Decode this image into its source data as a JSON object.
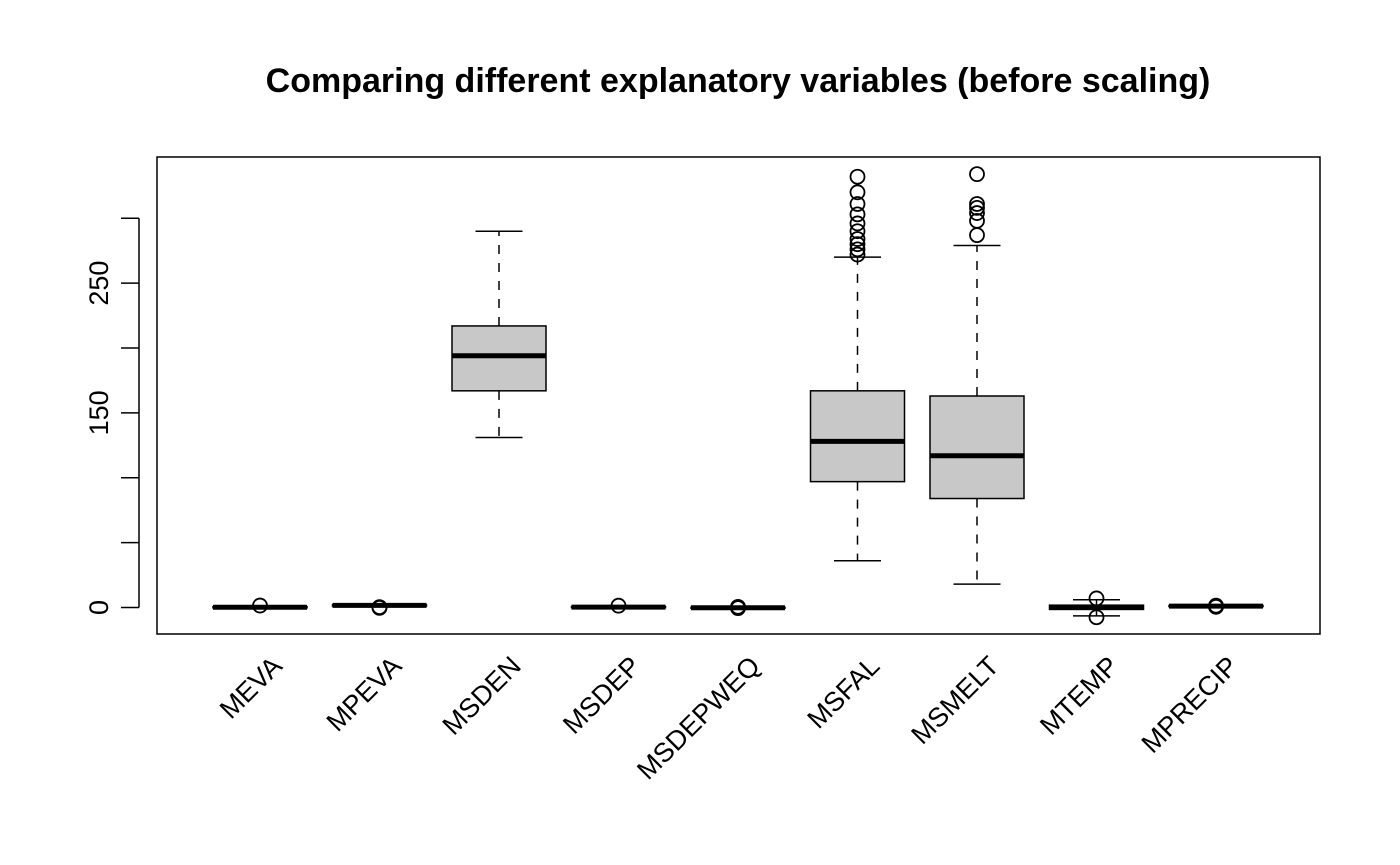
{
  "chart_data": {
    "type": "boxplot",
    "title": "Comparing different explanatory variables (before scaling)",
    "xlabel": "",
    "ylabel": "",
    "ylim": [
      -21,
      346
    ],
    "y_ticks": [
      0,
      50,
      100,
      150,
      200,
      250,
      300
    ],
    "y_tick_labels": [
      "0",
      "",
      "",
      "150",
      "",
      "250",
      ""
    ],
    "grid": false,
    "legend": "none",
    "box_fill": "#c8c8c8",
    "categories": [
      "MEVA",
      "MPEVA",
      "MSDEN",
      "MSDEP",
      "MSDEPWEQ",
      "MSFAL",
      "MSMELT",
      "MTEMP",
      "MPRECIP"
    ],
    "boxes": [
      {
        "whisker_low": -0.5,
        "q1": -0.3,
        "median": 0.2,
        "q3": 0.6,
        "whisker_high": 0.9,
        "outliers": [
          1.5
        ]
      },
      {
        "whisker_low": 0.8,
        "q1": 1.2,
        "median": 1.6,
        "q3": 2.0,
        "whisker_high": 2.3,
        "outliers": [
          -0.3,
          0.3
        ]
      },
      {
        "whisker_low": 131,
        "q1": 167,
        "median": 194,
        "q3": 217,
        "whisker_high": 290,
        "outliers": []
      },
      {
        "whisker_low": -0.4,
        "q1": -0.1,
        "median": 0.3,
        "q3": 0.7,
        "whisker_high": 1.0,
        "outliers": [
          1.4
        ]
      },
      {
        "whisker_low": -1.0,
        "q1": -0.6,
        "median": -0.2,
        "q3": 0.2,
        "whisker_high": 0.5,
        "outliers": [
          -0.5,
          0.5
        ]
      },
      {
        "whisker_low": 36,
        "q1": 97,
        "median": 128,
        "q3": 167,
        "whisker_high": 270,
        "outliers": [
          272,
          276,
          280,
          284,
          290,
          296,
          303,
          311,
          320,
          332
        ]
      },
      {
        "whisker_low": 18,
        "q1": 84,
        "median": 117,
        "q3": 163,
        "whisker_high": 279,
        "outliers": [
          287,
          298,
          304,
          308,
          311,
          334
        ]
      },
      {
        "whisker_low": -6.5,
        "q1": -1.5,
        "median": 0.3,
        "q3": 1.8,
        "whisker_high": 6.0,
        "outliers": [
          -7.5,
          7.0
        ]
      },
      {
        "whisker_low": 0.3,
        "q1": 0.7,
        "median": 1.1,
        "q3": 1.5,
        "whisker_high": 1.8,
        "outliers": [
          0.5,
          1.4
        ]
      }
    ]
  }
}
